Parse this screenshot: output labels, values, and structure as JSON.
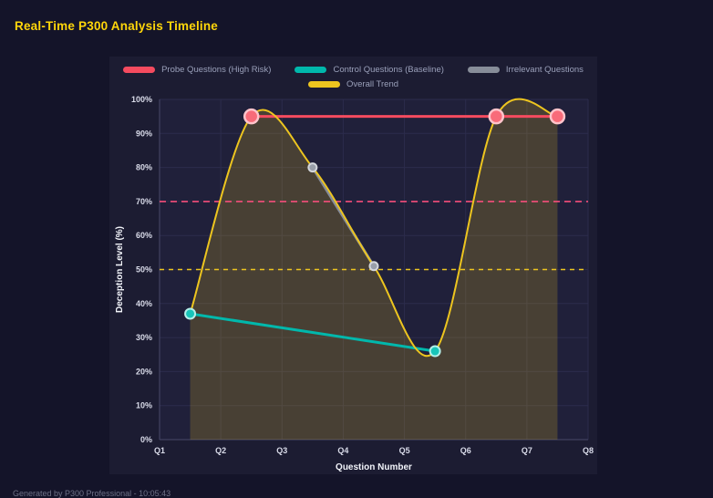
{
  "page": {
    "title": "Real-Time P300 Analysis Timeline",
    "footer": "Generated by P300 Professional - 10:05:43",
    "background": "#141429",
    "panel_background": "#1c1c32",
    "title_color": "#ffd60a"
  },
  "chart_data": {
    "type": "line",
    "title": "Real-Time P300 Analysis Timeline",
    "xlabel": "Question Number",
    "ylabel": "Deception Level (%)",
    "xlim": [
      1,
      8
    ],
    "ylim": [
      0,
      100
    ],
    "x_tick_values": [
      1,
      2,
      3,
      4,
      5,
      6,
      7,
      8
    ],
    "x_ticks": [
      "Q1",
      "Q2",
      "Q3",
      "Q4",
      "Q5",
      "Q6",
      "Q7",
      "Q8"
    ],
    "y_tick_values": [
      0,
      10,
      20,
      30,
      40,
      50,
      60,
      70,
      80,
      90,
      100
    ],
    "y_ticks": [
      "0%",
      "10%",
      "20%",
      "30%",
      "40%",
      "50%",
      "60%",
      "70%",
      "80%",
      "90%",
      "100%"
    ],
    "grid": true,
    "legend_position": "top",
    "series": [
      {
        "name": "Probe Questions (High Risk)",
        "color": "#f54b5f",
        "marker_fill": "#f86b79",
        "marker_stroke": "#ffc4cb",
        "marker_radius": 7.5,
        "marker_stroke_width": 2.5,
        "line_width": 3,
        "smooth": false,
        "x": [
          2.5,
          6.5,
          7.5
        ],
        "y": [
          95,
          95,
          95
        ]
      },
      {
        "name": "Control Questions (Baseline)",
        "color": "#00b8ac",
        "marker_fill": "#17c5b9",
        "marker_stroke": "#b3efe9",
        "marker_radius": 5.5,
        "marker_stroke_width": 2,
        "line_width": 3,
        "smooth": false,
        "x": [
          1.5,
          5.5
        ],
        "y": [
          37,
          26
        ]
      },
      {
        "name": "Irrelevant Questions",
        "color": "#878d99",
        "marker_fill": "#989ea9",
        "marker_stroke": "#d3d6dc",
        "marker_radius": 4.5,
        "marker_stroke_width": 2,
        "line_width": 3,
        "smooth": false,
        "x": [
          3.5,
          4.5
        ],
        "y": [
          80,
          51
        ]
      },
      {
        "name": "Overall Trend",
        "color": "#edc51f",
        "marker_radius": 0,
        "marker_stroke_width": 0,
        "line_width": 2,
        "smooth": true,
        "fill": "rgba(237,197,31,0.20)",
        "x": [
          1.5,
          2.5,
          3.5,
          4.5,
          5.5,
          6.5,
          7.5
        ],
        "y": [
          37,
          95,
          80,
          51,
          26,
          95,
          95
        ]
      }
    ],
    "reference_lines": [
      {
        "y": 70,
        "color": "#f64d7b",
        "dash": "7 5"
      },
      {
        "y": 50,
        "color": "#edc51f",
        "dash": "5 5"
      }
    ],
    "colors": {
      "plot_background": "#20203a",
      "grid": "#2c2c4c",
      "axis": "#474768",
      "tick_label": "#d9dbe9",
      "axis_title": "#f2f4fa"
    }
  }
}
